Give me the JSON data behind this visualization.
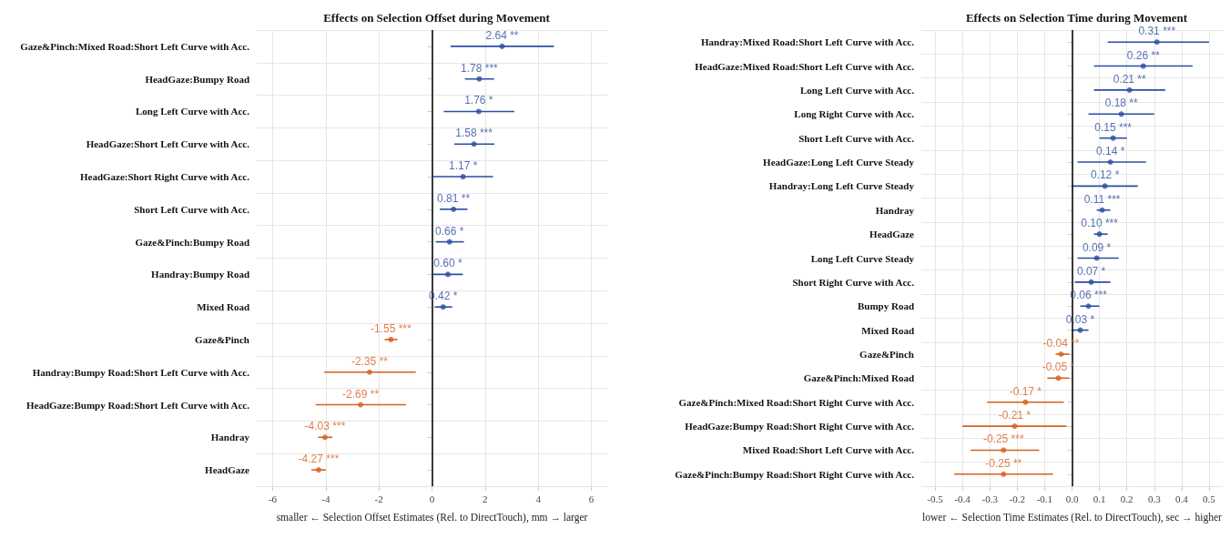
{
  "chart_data": [
    {
      "type": "scatter",
      "orientation": "horizontal",
      "title": "Effects on Selection Offset during Movement",
      "xlabel": "smaller ← Selection Offset Estimates (Rel. to DirectTouch), mm → larger",
      "categories": [
        "Gaze&Pinch:Mixed Road:Short Left Curve with Acc.",
        "HeadGaze:Bumpy Road",
        "Long Left Curve with Acc.",
        "HeadGaze:Short Left Curve with Acc.",
        "HeadGaze:Short Right Curve with Acc.",
        "Short Left Curve with Acc.",
        "Gaze&Pinch:Bumpy Road",
        "Handray:Bumpy Road",
        "Mixed Road",
        "Gaze&Pinch",
        "Handray:Bumpy Road:Short Left Curve with Acc.",
        "HeadGaze:Bumpy Road:Short Left Curve with Acc.",
        "Handray",
        "HeadGaze"
      ],
      "values": [
        2.64,
        1.78,
        1.76,
        1.58,
        1.17,
        0.81,
        0.66,
        0.6,
        0.42,
        -1.55,
        -2.35,
        -2.69,
        -4.03,
        -4.27
      ],
      "errors": [
        [
          0.7,
          4.59
        ],
        [
          1.24,
          2.34
        ],
        [
          0.44,
          3.1
        ],
        [
          0.84,
          2.35
        ],
        [
          0.04,
          2.3
        ],
        [
          0.29,
          1.34
        ],
        [
          0.14,
          1.2
        ],
        [
          0.04,
          1.16
        ],
        [
          0.1,
          0.76
        ],
        [
          -1.78,
          -1.3
        ],
        [
          -4.06,
          -0.61
        ],
        [
          -4.38,
          -0.98
        ],
        [
          -4.29,
          -3.75
        ],
        [
          -4.54,
          -4.0
        ]
      ],
      "value_labels": [
        "2.64 **",
        "1.78 ***",
        "1.76 *",
        "1.58 ***",
        "1.17 *",
        "0.81 **",
        "0.66 *",
        "0.60 *",
        "0.42 *",
        "-1.55 ***",
        "-2.35 **",
        "-2.69 **",
        "-4.03 ***",
        "-4.27 ***"
      ],
      "colors": [
        "#2b4ea2",
        "#2b4ea2",
        "#2b4ea2",
        "#2b4ea2",
        "#2b4ea2",
        "#2b4ea2",
        "#2b4ea2",
        "#2b4ea2",
        "#2b4ea2",
        "#d4621c",
        "#d4621c",
        "#d4621c",
        "#d4621c",
        "#d4621c"
      ],
      "xlim": [
        -6.6,
        6.6
      ],
      "xticks": [
        -6,
        -4,
        -2,
        0,
        2,
        4,
        6
      ],
      "grid": true,
      "marker": "circle",
      "ref_lines": [
        {
          "axis": "x",
          "value": 0,
          "color": "#000000"
        }
      ]
    },
    {
      "type": "scatter",
      "orientation": "horizontal",
      "title": "Effects on Selection Time during Movement",
      "xlabel": "lower ← Selection Time Estimates (Rel. to DirectTouch), sec → higher",
      "categories": [
        "Handray:Mixed Road:Short Left Curve with Acc.",
        "HeadGaze:Mixed Road:Short Left Curve with Acc.",
        "Long Left Curve with Acc.",
        "Long Right Curve with Acc.",
        "Short Left Curve with Acc.",
        "HeadGaze:Long Left Curve Steady",
        "Handray:Long Left Curve Steady",
        "Handray",
        "HeadGaze",
        "Long Left Curve Steady",
        "Short Right Curve with Acc.",
        "Bumpy Road",
        "Mixed Road",
        "Gaze&Pinch",
        "Gaze&Pinch:Mixed Road",
        "Gaze&Pinch:Mixed Road:Short Right Curve with Acc.",
        "HeadGaze:Bumpy Road:Short Right Curve with Acc.",
        "Mixed Road:Short Left Curve with Acc.",
        "Gaze&Pinch:Bumpy Road:Short Right Curve with Acc."
      ],
      "values": [
        0.31,
        0.26,
        0.21,
        0.18,
        0.15,
        0.14,
        0.12,
        0.11,
        0.1,
        0.09,
        0.07,
        0.06,
        0.03,
        -0.04,
        -0.05,
        -0.17,
        -0.21,
        -0.25,
        -0.25
      ],
      "errors": [
        [
          0.13,
          0.5
        ],
        [
          0.08,
          0.44
        ],
        [
          0.08,
          0.34
        ],
        [
          0.06,
          0.3
        ],
        [
          0.1,
          0.2
        ],
        [
          0.02,
          0.27
        ],
        [
          0.0,
          0.24
        ],
        [
          0.09,
          0.14
        ],
        [
          0.08,
          0.13
        ],
        [
          0.02,
          0.17
        ],
        [
          0.01,
          0.14
        ],
        [
          0.03,
          0.1
        ],
        [
          0.0,
          0.06
        ],
        [
          -0.06,
          -0.01
        ],
        [
          -0.09,
          -0.01
        ],
        [
          -0.31,
          -0.03
        ],
        [
          -0.4,
          -0.02
        ],
        [
          -0.37,
          -0.12
        ],
        [
          -0.43,
          -0.07
        ]
      ],
      "value_labels": [
        "0.31 ***",
        "0.26 **",
        "0.21 **",
        "0.18 **",
        "0.15 ***",
        "0.14 *",
        "0.12 *",
        "0.11 ***",
        "0.10 ***",
        "0.09 *",
        "0.07 *",
        "0.06 ***",
        "0.03 *",
        "-0.04 **",
        "-0.05 *",
        "-0.17 *",
        "-0.21 *",
        "-0.25 ***",
        "-0.25 **"
      ],
      "colors": [
        "#2b4ea2",
        "#2b4ea2",
        "#2b4ea2",
        "#2b4ea2",
        "#2b4ea2",
        "#2b4ea2",
        "#2b4ea2",
        "#2b4ea2",
        "#2b4ea2",
        "#2b4ea2",
        "#2b4ea2",
        "#2b4ea2",
        "#2b4ea2",
        "#d4621c",
        "#d4621c",
        "#d4621c",
        "#d4621c",
        "#d4621c",
        "#d4621c"
      ],
      "xlim": [
        -0.55,
        0.55
      ],
      "xticks": [
        -0.5,
        -0.4,
        -0.3,
        -0.2,
        -0.1,
        {
          "value": 0,
          "label": "0.0"
        },
        0.1,
        0.2,
        0.3,
        0.4,
        0.5
      ],
      "grid": true,
      "marker": "circle",
      "ref_lines": [
        {
          "axis": "x",
          "value": 0,
          "color": "#000000"
        }
      ]
    }
  ]
}
